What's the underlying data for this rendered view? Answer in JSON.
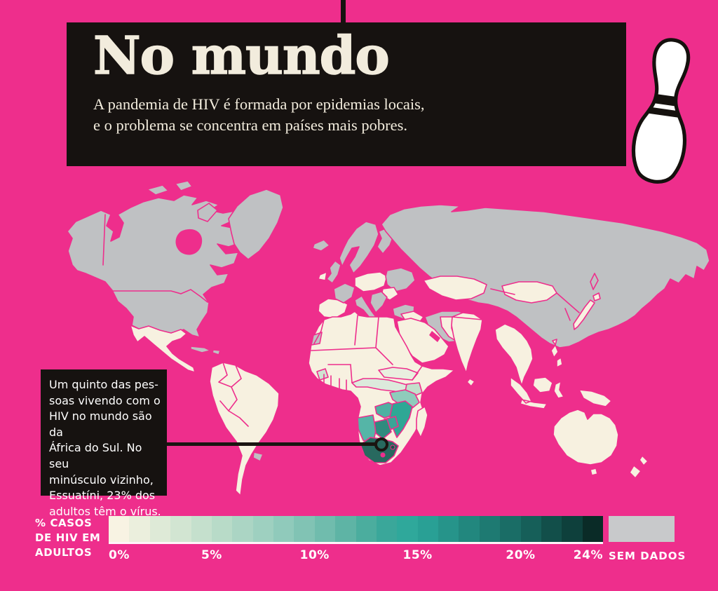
{
  "page": {
    "background_color": "#EE2E8C",
    "panel_color": "#161210"
  },
  "header": {
    "title": "No mundo",
    "subtitle": "A pandemia de HIV é formada por epidemias locais,\ne o problema se concentra em países mais pobres.",
    "text_color": "#F2ECDD"
  },
  "decoration": {
    "bowling_pin_icon": "bowling-pin"
  },
  "callout": {
    "text": "Um quinto das pes-\nsoas vivendo com o\nHIV no mundo são da\nÁfrica do Sul. No seu\nminúsculo vizinho,\nEssuatíni, 23% dos\nadultos têm o vírus."
  },
  "legend": {
    "label": "% CASOS\nDE HIV EM\nADULTOS",
    "max_value": 24,
    "ticks": [
      {
        "label": "0%",
        "value": 0
      },
      {
        "label": "5%",
        "value": 5
      },
      {
        "label": "10%",
        "value": 10
      },
      {
        "label": "15%",
        "value": 15
      },
      {
        "label": "20%",
        "value": 20
      },
      {
        "label": "24%",
        "value": 24
      }
    ],
    "gradient_colors": [
      "#F8F3E3",
      "#EBEFDD",
      "#DEEAD7",
      "#D2E5D2",
      "#C5E0CD",
      "#B8DBC8",
      "#ABD5C4",
      "#9ED0C0",
      "#90CABB",
      "#81C3B4",
      "#70BCAD",
      "#5EB4A5",
      "#4BAD9E",
      "#3AA79A",
      "#2FA89B",
      "#29A095",
      "#26948A",
      "#22877E",
      "#1E7A72",
      "#1A6D66",
      "#165F59",
      "#124F4A",
      "#0E403C",
      "#0A2B27"
    ],
    "no_data_label": "SEM DADOS",
    "no_data_color": "#C8C9CB"
  },
  "chart_data": {
    "type": "choropleth",
    "title": "No mundo",
    "metric": "% casos de HIV em adultos",
    "scale": {
      "min": 0,
      "max": 24,
      "unit": "%",
      "tick_labels": [
        "0%",
        "5%",
        "10%",
        "15%",
        "20%",
        "24%"
      ],
      "no_data_label": "SEM DADOS"
    },
    "annotations": [
      {
        "text": "Um quinto das pessoas vivendo com o HIV no mundo são da África do Sul. No seu minúsculo vizinho, Essuatíni, 23% dos adultos têm o vírus.",
        "target": "Essuatíni",
        "value_percent": 23
      }
    ],
    "regions_depicted": [
      {
        "region": "África do Sul",
        "shade": "teal escuro (~20%+)"
      },
      {
        "region": "Botsuana, Zimbábue, Moçambique, Zâmbia, Namíbia, Essuatíni",
        "shade": "teal médio (10–20%)"
      },
      {
        "region": "Tanzânia, Quênia, Uganda, África Central e Ocidental",
        "shade": "verde claro (1–8%)"
      },
      {
        "region": "Américas, Norte da África, Oriente Médio, Ásia Meridional, Oceania, Europa parcial",
        "shade": "creme (~0%)"
      },
      {
        "region": "EUA, Canadá, Groenlândia, Rússia, China, Escandinávia, Irã, Turquia, Itália, França, Uruguai, Cuba e outros",
        "shade": "cinza (sem dados)"
      }
    ],
    "legend_position": "bottom"
  },
  "map": {
    "land_base_color": "#F7F1E0",
    "no_data_color": "#BFC1C3",
    "border_color": "#EE2E8C"
  }
}
